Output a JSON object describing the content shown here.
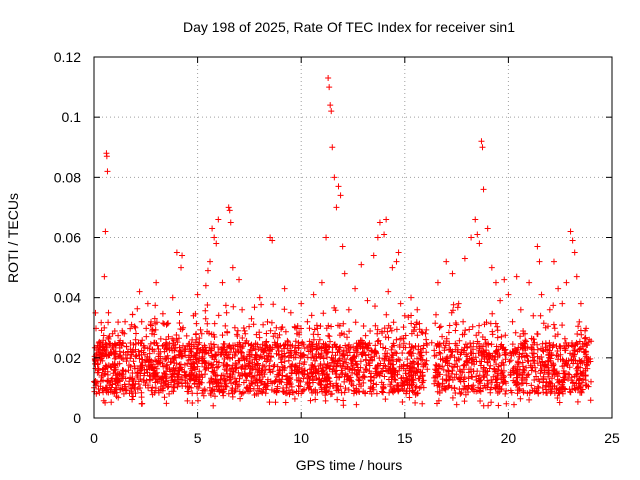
{
  "chart_data": {
    "type": "scatter",
    "title": "Day 198 of 2025, Rate Of TEC Index for receiver sin1",
    "xlabel": "GPS time / hours",
    "ylabel": "ROTI / TECUs",
    "xlim": [
      0,
      25
    ],
    "ylim": [
      0,
      0.12
    ],
    "xticks": [
      0,
      5,
      10,
      15,
      20,
      25
    ],
    "xtick_labels": [
      "0",
      "5",
      "10",
      "15",
      "20",
      "25"
    ],
    "yticks": [
      0,
      0.02,
      0.04,
      0.06,
      0.08,
      0.1,
      0.12
    ],
    "ytick_labels": [
      "0",
      "0.02",
      "0.04",
      "0.06",
      "0.08",
      "0.1",
      "0.12"
    ],
    "grid": true,
    "marker": "+",
    "color": "#ff0000",
    "series": [
      {
        "name": "ROTI",
        "x": [
          0.05,
          0.1,
          0.2,
          0.3,
          0.4,
          0.5,
          0.55,
          0.6,
          0.62,
          0.65,
          0.7,
          0.8,
          0.9,
          1.0,
          1.2,
          1.5,
          1.8,
          2.0,
          2.2,
          2.4,
          2.6,
          2.8,
          3.0,
          3.2,
          3.5,
          3.8,
          4.0,
          4.2,
          4.25,
          4.3,
          4.5,
          4.8,
          5.0,
          5.2,
          5.4,
          5.5,
          5.6,
          5.7,
          5.8,
          5.9,
          6.0,
          6.2,
          6.4,
          6.5,
          6.55,
          6.6,
          6.7,
          6.8,
          7.0,
          7.3,
          7.6,
          8.0,
          8.3,
          8.5,
          8.6,
          8.8,
          9.0,
          9.2,
          9.5,
          9.8,
          10.0,
          10.3,
          10.6,
          10.9,
          11.0,
          11.2,
          11.3,
          11.35,
          11.4,
          11.45,
          11.5,
          11.6,
          11.7,
          11.8,
          11.9,
          12.0,
          12.1,
          12.3,
          12.6,
          12.9,
          13.2,
          13.5,
          13.7,
          13.8,
          14.0,
          14.1,
          14.2,
          14.4,
          14.6,
          14.7,
          14.8,
          15.0,
          15.3,
          15.6,
          16.0,
          16.3,
          16.6,
          17.0,
          17.3,
          17.6,
          17.9,
          18.2,
          18.4,
          18.5,
          18.6,
          18.7,
          18.75,
          18.8,
          19.0,
          19.2,
          19.4,
          19.6,
          19.8,
          20.0,
          20.2,
          20.4,
          20.6,
          20.8,
          21.0,
          21.2,
          21.4,
          21.5,
          21.6,
          21.8,
          22.0,
          22.2,
          22.4,
          22.6,
          22.8,
          23.0,
          23.1,
          23.2,
          23.3,
          23.5,
          23.7,
          23.9
        ],
        "y": [
          0.018,
          0.021,
          0.016,
          0.024,
          0.019,
          0.047,
          0.062,
          0.088,
          0.087,
          0.082,
          0.035,
          0.022,
          0.028,
          0.018,
          0.025,
          0.032,
          0.021,
          0.03,
          0.042,
          0.024,
          0.038,
          0.028,
          0.045,
          0.022,
          0.031,
          0.04,
          0.055,
          0.05,
          0.054,
          0.03,
          0.024,
          0.034,
          0.041,
          0.028,
          0.044,
          0.049,
          0.052,
          0.063,
          0.06,
          0.058,
          0.066,
          0.045,
          0.035,
          0.07,
          0.069,
          0.065,
          0.05,
          0.03,
          0.046,
          0.028,
          0.033,
          0.04,
          0.025,
          0.06,
          0.059,
          0.03,
          0.024,
          0.043,
          0.035,
          0.028,
          0.038,
          0.032,
          0.041,
          0.026,
          0.045,
          0.06,
          0.113,
          0.11,
          0.104,
          0.102,
          0.09,
          0.08,
          0.07,
          0.077,
          0.074,
          0.057,
          0.048,
          0.036,
          0.043,
          0.051,
          0.039,
          0.054,
          0.06,
          0.065,
          0.061,
          0.066,
          0.042,
          0.05,
          0.052,
          0.055,
          0.038,
          0.034,
          0.04,
          0.036,
          0.028,
          0.025,
          0.045,
          0.052,
          0.048,
          0.038,
          0.053,
          0.06,
          0.066,
          0.061,
          0.058,
          0.092,
          0.09,
          0.076,
          0.063,
          0.05,
          0.045,
          0.039,
          0.046,
          0.041,
          0.032,
          0.047,
          0.036,
          0.028,
          0.045,
          0.034,
          0.057,
          0.052,
          0.041,
          0.03,
          0.036,
          0.052,
          0.043,
          0.038,
          0.045,
          0.062,
          0.059,
          0.055,
          0.047,
          0.038,
          0.029,
          0.026
        ],
        "band_lower": 0.005,
        "band_typical": [
          0.01,
          0.025
        ]
      }
    ]
  }
}
